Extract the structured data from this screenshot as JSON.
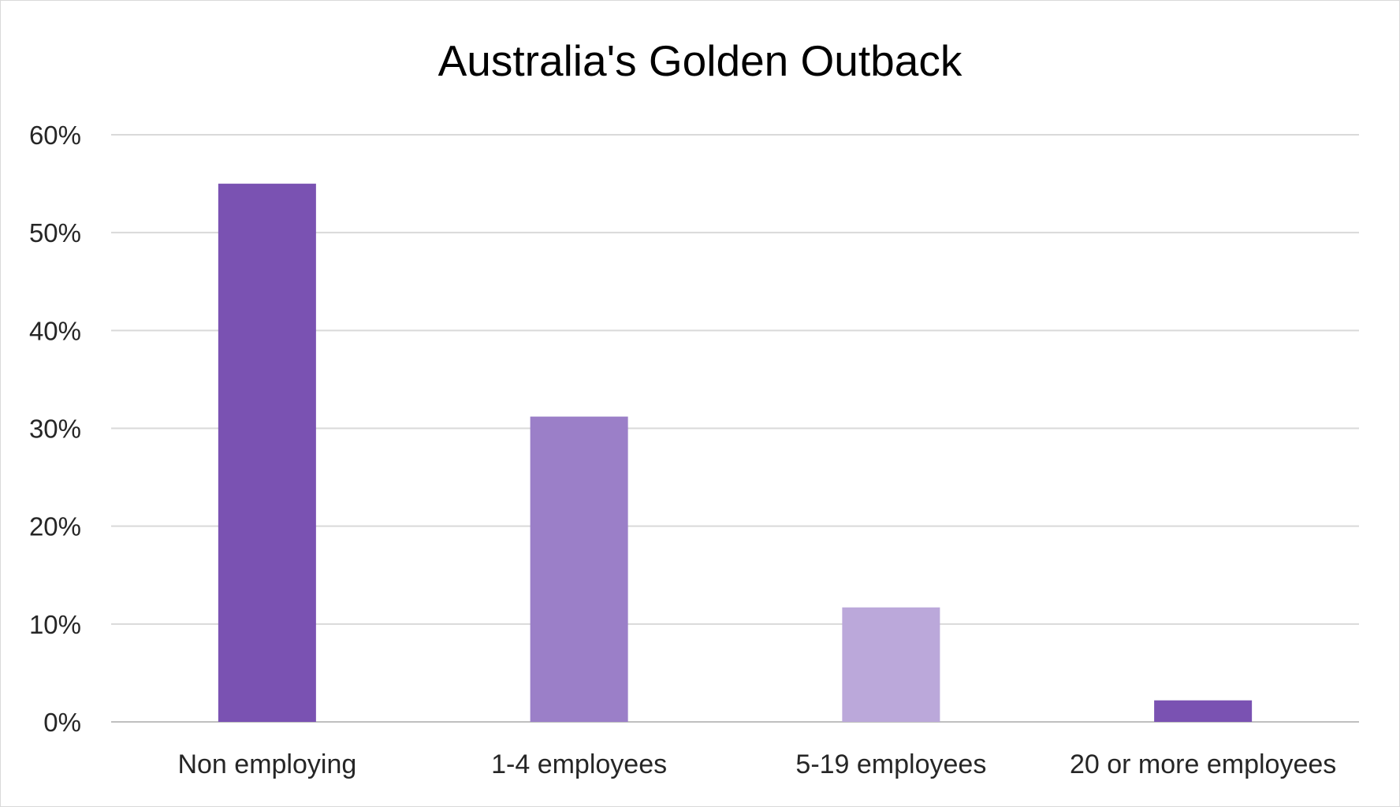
{
  "chart_data": {
    "type": "bar",
    "title": "Australia's Golden Outback",
    "xlabel": "",
    "ylabel": "",
    "categories": [
      "Non employing",
      "1-4 employees",
      "5-19 employees",
      "20 or more employees"
    ],
    "values": [
      55,
      31.2,
      11.7,
      2.2
    ],
    "ylim": [
      0,
      60
    ],
    "yticks": [
      0,
      10,
      20,
      30,
      40,
      50,
      60
    ],
    "ytick_labels": [
      "0%",
      "10%",
      "20%",
      "30%",
      "40%",
      "50%",
      "60%"
    ],
    "bar_colors": [
      "#7a52b2",
      "#9b7fc8",
      "#bba8da",
      "#7a52b2"
    ],
    "grid": true,
    "legend": "none"
  }
}
